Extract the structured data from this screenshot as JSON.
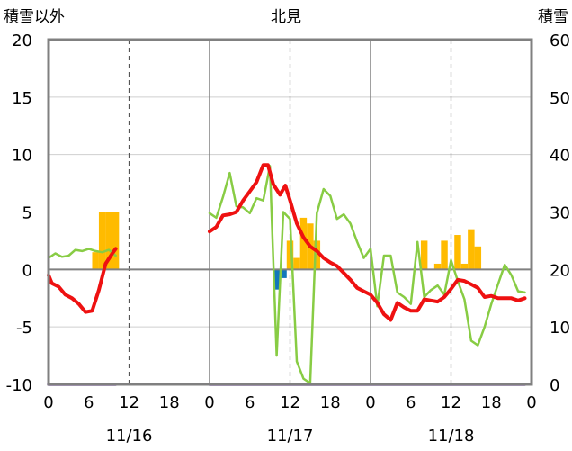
{
  "left_title": "積雪以外",
  "station": "北見",
  "right_title": "積雪",
  "chart_data": {
    "type": "line",
    "title": "北見",
    "x_unit": "hour",
    "x_range": [
      0,
      72
    ],
    "xticks": [
      {
        "x": 0,
        "label": "0"
      },
      {
        "x": 6,
        "label": "6"
      },
      {
        "x": 12,
        "label": "12"
      },
      {
        "x": 18,
        "label": "18"
      },
      {
        "x": 24,
        "label": "0"
      },
      {
        "x": 30,
        "label": "6"
      },
      {
        "x": 36,
        "label": "12"
      },
      {
        "x": 42,
        "label": "18"
      },
      {
        "x": 48,
        "label": "0"
      },
      {
        "x": 54,
        "label": "6"
      },
      {
        "x": 60,
        "label": "12"
      },
      {
        "x": 66,
        "label": "18"
      },
      {
        "x": 72,
        "label": "0"
      }
    ],
    "day_labels": [
      {
        "x": 12,
        "label": "11/16"
      },
      {
        "x": 36,
        "label": "11/17"
      },
      {
        "x": 60,
        "label": "11/18"
      }
    ],
    "ylim_left": [
      -10,
      20
    ],
    "yticks_left": [
      20,
      15,
      10,
      5,
      0,
      -5,
      -10
    ],
    "ylim_right": [
      0,
      60
    ],
    "yticks_right": [
      60,
      50,
      40,
      30,
      20,
      10,
      0
    ],
    "grid": "dashed vertical lines at 12:00, solid vertical lines at 0:00",
    "colors": {
      "temperature": "#ee1111",
      "wind_speed": "#88cc44",
      "precip_positive": "#ffbb00",
      "precip_negative": "#1177bb",
      "snow_depth": "#7744aa",
      "zero_line": "#808080",
      "frame": "#808080"
    },
    "series": [
      {
        "key": "temperature",
        "axis": "left",
        "kind": "line",
        "points": [
          [
            0,
            -0.5
          ],
          [
            0.5,
            -1.2
          ],
          [
            1.5,
            -1.5
          ],
          [
            2.5,
            -2.2
          ],
          [
            3.5,
            -2.5
          ],
          [
            4.5,
            -3.0
          ],
          [
            5.5,
            -3.7
          ],
          [
            6.5,
            -3.6
          ],
          [
            7.5,
            -1.8
          ],
          [
            8.5,
            0.5
          ],
          [
            9.5,
            1.4
          ],
          [
            10,
            1.8
          ]
        ]
      },
      {
        "key": "temperature",
        "axis": "left",
        "kind": "line",
        "points": [
          [
            24,
            3.3
          ],
          [
            25,
            3.7
          ],
          [
            26,
            4.7
          ],
          [
            27,
            4.8
          ],
          [
            28,
            5.0
          ],
          [
            29,
            6.0
          ],
          [
            30,
            6.8
          ],
          [
            31,
            7.6
          ],
          [
            32,
            9.1
          ],
          [
            32.7,
            9.1
          ],
          [
            33.5,
            7.4
          ],
          [
            34.5,
            6.5
          ],
          [
            35.3,
            7.3
          ],
          [
            36,
            6.0
          ],
          [
            37,
            4.0
          ],
          [
            38,
            2.8
          ],
          [
            39,
            2.0
          ],
          [
            40,
            1.6
          ],
          [
            41,
            1.0
          ],
          [
            42,
            0.6
          ],
          [
            43,
            0.3
          ],
          [
            44,
            -0.3
          ],
          [
            45,
            -0.9
          ],
          [
            46,
            -1.6
          ],
          [
            47,
            -1.9
          ],
          [
            48,
            -2.2
          ],
          [
            49,
            -2.9
          ],
          [
            50,
            -3.9
          ],
          [
            51,
            -4.4
          ],
          [
            52,
            -2.9
          ],
          [
            53,
            -3.3
          ],
          [
            54,
            -3.6
          ],
          [
            55,
            -3.6
          ],
          [
            56,
            -2.6
          ],
          [
            57,
            -2.7
          ],
          [
            58,
            -2.8
          ],
          [
            59,
            -2.4
          ],
          [
            60,
            -1.7
          ],
          [
            61,
            -0.9
          ],
          [
            62,
            -1.0
          ],
          [
            63,
            -1.3
          ],
          [
            64,
            -1.6
          ],
          [
            65,
            -2.4
          ],
          [
            66,
            -2.3
          ],
          [
            67,
            -2.5
          ],
          [
            68,
            -2.5
          ],
          [
            69,
            -2.5
          ],
          [
            70,
            -2.7
          ],
          [
            71,
            -2.5
          ]
        ]
      },
      {
        "key": "wind_speed",
        "axis": "left",
        "kind": "line",
        "points": [
          [
            0,
            1.0
          ],
          [
            1,
            1.4
          ],
          [
            2,
            1.1
          ],
          [
            3,
            1.2
          ],
          [
            4,
            1.7
          ],
          [
            5,
            1.6
          ],
          [
            6,
            1.8
          ],
          [
            7,
            1.6
          ],
          [
            8,
            1.5
          ],
          [
            9,
            1.7
          ],
          [
            10,
            1.2
          ]
        ]
      },
      {
        "key": "wind_speed",
        "axis": "left",
        "kind": "line",
        "points": [
          [
            24,
            4.9
          ],
          [
            25,
            4.5
          ],
          [
            26,
            6.3
          ],
          [
            27,
            8.4
          ],
          [
            28,
            5.5
          ],
          [
            29,
            5.4
          ],
          [
            30,
            4.9
          ],
          [
            31,
            6.2
          ],
          [
            32,
            6.0
          ],
          [
            33,
            9.0
          ],
          [
            34,
            -7.5
          ],
          [
            35,
            5.0
          ],
          [
            36,
            4.4
          ],
          [
            37,
            -8.0
          ],
          [
            38,
            -9.5
          ],
          [
            39,
            -9.9
          ],
          [
            40,
            4.9
          ],
          [
            41,
            7.0
          ],
          [
            42,
            6.4
          ],
          [
            43,
            4.4
          ],
          [
            44,
            4.8
          ],
          [
            45,
            4.0
          ],
          [
            46,
            2.4
          ],
          [
            47,
            1.0
          ],
          [
            48,
            1.8
          ],
          [
            49,
            -3.2
          ],
          [
            50,
            1.2
          ],
          [
            51,
            1.2
          ],
          [
            52,
            -2.0
          ],
          [
            53,
            -2.4
          ],
          [
            54,
            -3.0
          ],
          [
            55,
            2.4
          ],
          [
            56,
            -2.4
          ],
          [
            57,
            -1.8
          ],
          [
            58,
            -1.4
          ],
          [
            59,
            -2.2
          ],
          [
            60,
            0.8
          ],
          [
            61,
            -1.0
          ],
          [
            62,
            -2.6
          ],
          [
            63,
            -6.2
          ],
          [
            64,
            -6.6
          ],
          [
            65,
            -5.0
          ],
          [
            66,
            -3.0
          ],
          [
            67,
            -1.3
          ],
          [
            68,
            0.4
          ],
          [
            69,
            -0.5
          ],
          [
            70,
            -1.9
          ],
          [
            71,
            -2.0
          ]
        ]
      },
      {
        "key": "precip_positive",
        "axis": "right",
        "kind": "bar",
        "width": 1,
        "points": [
          [
            7,
            3
          ],
          [
            8,
            10
          ],
          [
            9,
            10
          ],
          [
            10,
            10
          ],
          [
            36,
            5
          ],
          [
            37,
            2
          ],
          [
            38,
            9
          ],
          [
            39,
            8
          ],
          [
            40,
            5
          ],
          [
            56,
            5
          ],
          [
            58,
            1
          ],
          [
            59,
            5
          ],
          [
            61,
            6
          ],
          [
            62,
            1
          ],
          [
            63,
            7
          ],
          [
            64,
            4
          ]
        ]
      },
      {
        "key": "precip_negative",
        "axis": "right",
        "kind": "bar",
        "width": 1,
        "points": [
          [
            34,
            -3.5
          ],
          [
            35,
            -1.5
          ]
        ]
      },
      {
        "key": "snow_depth",
        "axis": "left",
        "kind": "line",
        "points": [
          [
            0,
            -10
          ],
          [
            10,
            -10
          ]
        ]
      },
      {
        "key": "snow_depth",
        "axis": "left",
        "kind": "line",
        "points": [
          [
            24,
            -10
          ],
          [
            71,
            -10
          ]
        ]
      }
    ]
  }
}
